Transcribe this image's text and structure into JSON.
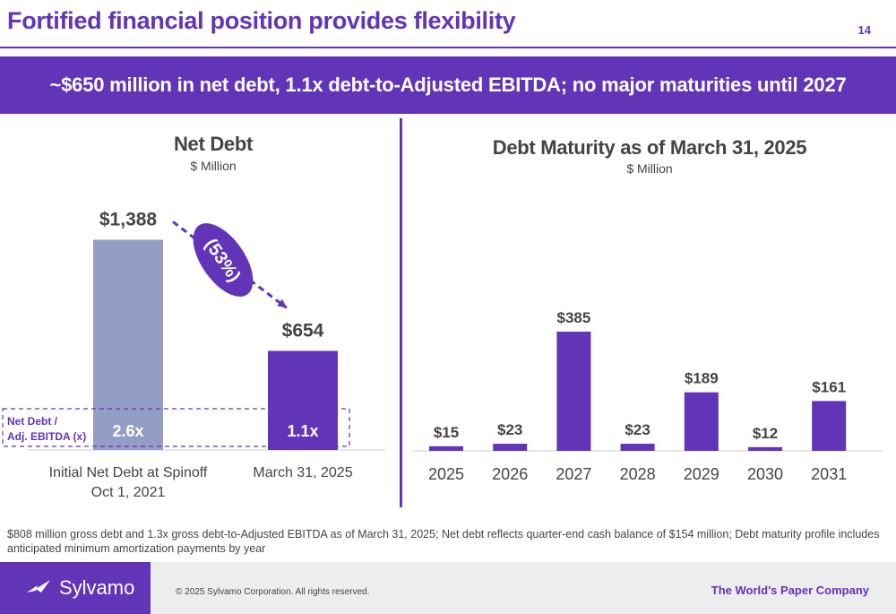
{
  "header": {
    "title": "Fortified financial position provides flexibility",
    "page_number": "14",
    "banner": "~$650 million in net debt, 1.1x debt-to-Adjusted EBITDA; no major maturities until 2027"
  },
  "colors": {
    "brand": "#6234b8",
    "bar_initial": "#949dc4",
    "bar_current": "#6234b8"
  },
  "chart_data": [
    {
      "type": "bar",
      "title": "Net Debt",
      "subtitle": "$ Million",
      "categories": [
        "Initial Net Debt at Spinoff\nOct 1, 2021",
        "March 31, 2025"
      ],
      "category_lines": [
        [
          "Initial Net Debt at Spinoff",
          "Oct 1, 2021"
        ],
        [
          "March 31, 2025"
        ]
      ],
      "values": [
        1388,
        654
      ],
      "value_labels": [
        "$1,388",
        "$654"
      ],
      "leverage_label": [
        "Net Debt /",
        "Adj. EBITDA (x)"
      ],
      "leverage_values": [
        "2.6x",
        "1.1x"
      ],
      "change_label": "(53%)",
      "bar_colors": [
        "#949dc4",
        "#6234b8"
      ]
    },
    {
      "type": "bar",
      "title": "Debt Maturity as of  March 31, 2025",
      "subtitle": "$ Million",
      "categories": [
        "2025",
        "2026",
        "2027",
        "2028",
        "2029",
        "2030",
        "2031"
      ],
      "values": [
        15,
        23,
        385,
        23,
        189,
        12,
        161
      ],
      "value_labels": [
        "$15",
        "$23",
        "$385",
        "$23",
        "$189",
        "$12",
        "$161"
      ]
    }
  ],
  "footnote": "$808 million gross debt and 1.3x gross debt-to-Adjusted EBITDA as of March 31, 2025; Net debt reflects quarter-end cash balance of $154 million; Debt maturity profile includes anticipated minimum amortization payments by year",
  "footer": {
    "logo_text": "Sylvamo",
    "logo_icon": "bird-icon",
    "copyright": "© 2025 Sylvamo Corporation. All rights reserved.",
    "tagline": "The World's Paper Company"
  }
}
